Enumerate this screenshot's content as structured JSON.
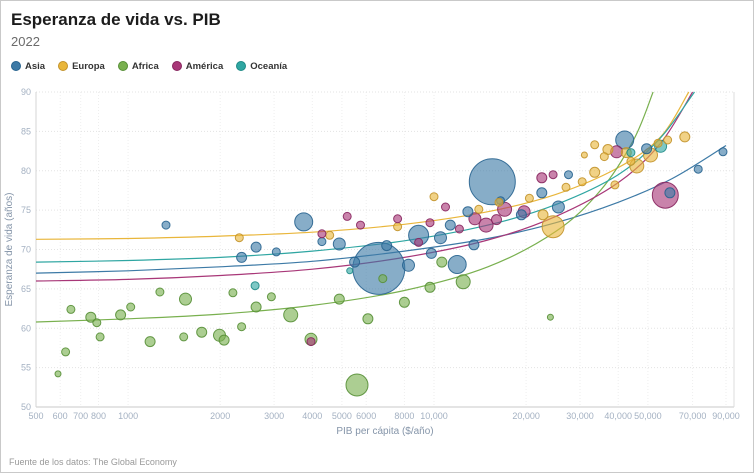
{
  "footer": {
    "source": "Fuente de los datos: The Global Economy"
  },
  "chart_data": {
    "type": "scatter",
    "title": "Esperanza de vida vs. PIB",
    "subtitle": "2022",
    "xlabel": "PIB per cápita ($/año)",
    "ylabel": "Esperanza de vida (años)",
    "x_scale": "log",
    "xlim": [
      500,
      90000
    ],
    "ylim": [
      50,
      90
    ],
    "grid": true,
    "legend_position": "top-left",
    "x_ticks": [
      500,
      600,
      700,
      800,
      1000,
      2000,
      3000,
      4000,
      5000,
      6000,
      8000,
      10000,
      20000,
      30000,
      40000,
      50000,
      70000,
      90000
    ],
    "x_tick_labels": [
      "500",
      "600",
      "700",
      "800",
      "1000",
      "2000",
      "3000",
      "4000",
      "5000",
      "6000",
      "8000",
      "10,000",
      "20,000",
      "30,000",
      "40,000",
      "50,000",
      "70,000",
      "90,000"
    ],
    "y_ticks": [
      50,
      55,
      60,
      65,
      70,
      75,
      80,
      85,
      90
    ],
    "point_format": "[pib_per_capita, esperanza_de_vida, bubble_radius_px]",
    "series": [
      {
        "name": "Asia",
        "color": "#3d7aa6",
        "stroke": "#27638f",
        "points": [
          [
            1330,
            73.1,
            4
          ],
          [
            3750,
            73.5,
            9
          ],
          [
            6600,
            67.6,
            26
          ],
          [
            15500,
            78.6,
            23
          ],
          [
            8900,
            71.8,
            10
          ],
          [
            11900,
            68.1,
            9
          ],
          [
            4900,
            70.7,
            6
          ],
          [
            5500,
            68.4,
            5
          ],
          [
            8250,
            68.0,
            6
          ],
          [
            42000,
            83.9,
            9
          ],
          [
            49500,
            82.8,
            5
          ],
          [
            73000,
            80.2,
            4
          ],
          [
            88000,
            82.4,
            4
          ],
          [
            59000,
            77.2,
            5
          ],
          [
            25500,
            75.4,
            6
          ],
          [
            22500,
            77.2,
            5
          ],
          [
            27500,
            79.5,
            4
          ],
          [
            2620,
            70.3,
            5
          ],
          [
            3050,
            69.7,
            4
          ],
          [
            2350,
            69.0,
            5
          ],
          [
            12900,
            74.8,
            5
          ],
          [
            11300,
            73.1,
            5
          ],
          [
            19300,
            74.4,
            5
          ],
          [
            7000,
            70.5,
            5
          ],
          [
            9800,
            69.5,
            5
          ],
          [
            10500,
            71.5,
            6
          ],
          [
            13500,
            70.6,
            5
          ],
          [
            4300,
            71.0,
            4
          ],
          [
            16500,
            76.2,
            4
          ]
        ],
        "trend": [
          [
            500,
            67.0
          ],
          [
            1000,
            67.3
          ],
          [
            2000,
            67.8
          ],
          [
            4000,
            68.5
          ],
          [
            8000,
            69.8
          ],
          [
            15000,
            71.4
          ],
          [
            25000,
            73.4
          ],
          [
            40000,
            76.0
          ],
          [
            60000,
            79.0
          ],
          [
            90000,
            83.2
          ]
        ]
      },
      {
        "name": "Europa",
        "color": "#e9b63b",
        "stroke": "#c2922a",
        "points": [
          [
            2310,
            71.5,
            4
          ],
          [
            24500,
            72.9,
            11
          ],
          [
            37000,
            82.7,
            5
          ],
          [
            51000,
            82.0,
            7
          ],
          [
            46000,
            80.6,
            7
          ],
          [
            36000,
            81.8,
            4
          ],
          [
            33500,
            83.3,
            4
          ],
          [
            54000,
            83.5,
            4
          ],
          [
            33500,
            79.8,
            5
          ],
          [
            30500,
            78.6,
            4
          ],
          [
            27000,
            77.9,
            4
          ],
          [
            22700,
            74.4,
            5
          ],
          [
            16300,
            76.0,
            4
          ],
          [
            14000,
            75.1,
            4
          ],
          [
            10000,
            76.7,
            4
          ],
          [
            7600,
            72.9,
            4
          ],
          [
            4560,
            71.8,
            4
          ],
          [
            66000,
            84.3,
            5
          ],
          [
            58000,
            83.9,
            4
          ],
          [
            42500,
            82.3,
            5
          ],
          [
            39000,
            78.2,
            4
          ],
          [
            20500,
            76.5,
            4
          ],
          [
            44000,
            81.2,
            4
          ],
          [
            31000,
            82.0,
            3
          ]
        ],
        "trend": [
          [
            500,
            71.3
          ],
          [
            1000,
            71.4
          ],
          [
            2000,
            71.7
          ],
          [
            4000,
            72.2
          ],
          [
            8000,
            73.2
          ],
          [
            15000,
            74.8
          ],
          [
            25000,
            77.0
          ],
          [
            40000,
            80.4
          ],
          [
            55000,
            84.3
          ],
          [
            68000,
            90
          ]
        ]
      },
      {
        "name": "Africa",
        "color": "#79b04f",
        "stroke": "#578f36",
        "points": [
          [
            650,
            62.4,
            4
          ],
          [
            755,
            61.4,
            5
          ],
          [
            790,
            60.7,
            4
          ],
          [
            945,
            61.7,
            5
          ],
          [
            1020,
            62.7,
            4
          ],
          [
            1180,
            58.3,
            5
          ],
          [
            1540,
            63.7,
            6
          ],
          [
            1520,
            58.9,
            4
          ],
          [
            1740,
            59.5,
            5
          ],
          [
            1990,
            59.1,
            6
          ],
          [
            2060,
            58.5,
            5
          ],
          [
            2350,
            60.2,
            4
          ],
          [
            2620,
            62.7,
            5
          ],
          [
            2940,
            64.0,
            4
          ],
          [
            3400,
            61.7,
            7
          ],
          [
            3960,
            58.6,
            6
          ],
          [
            5600,
            52.8,
            11
          ],
          [
            4900,
            63.7,
            5
          ],
          [
            6080,
            61.2,
            5
          ],
          [
            8000,
            63.3,
            5
          ],
          [
            9700,
            65.2,
            5
          ],
          [
            12450,
            65.9,
            7
          ],
          [
            10600,
            68.4,
            5
          ],
          [
            1270,
            64.6,
            4
          ],
          [
            625,
            57.0,
            4
          ],
          [
            24000,
            61.4,
            3
          ],
          [
            810,
            58.9,
            4
          ],
          [
            590,
            54.2,
            3
          ],
          [
            2200,
            64.5,
            4
          ],
          [
            6800,
            66.3,
            4
          ]
        ],
        "trend": [
          [
            500,
            60.8
          ],
          [
            1000,
            61.2
          ],
          [
            2000,
            61.8
          ],
          [
            4000,
            62.9
          ],
          [
            8000,
            64.8
          ],
          [
            15000,
            67.8
          ],
          [
            25000,
            72.3
          ],
          [
            35000,
            77.5
          ],
          [
            45000,
            84.0
          ],
          [
            52000,
            90
          ]
        ]
      },
      {
        "name": "América",
        "color": "#a83778",
        "stroke": "#87255e",
        "points": [
          [
            3960,
            58.3,
            4
          ],
          [
            14800,
            73.1,
            7
          ],
          [
            13600,
            73.9,
            6
          ],
          [
            17000,
            75.1,
            7
          ],
          [
            19700,
            74.8,
            6
          ],
          [
            22500,
            79.1,
            5
          ],
          [
            24500,
            79.5,
            4
          ],
          [
            57000,
            76.9,
            13
          ],
          [
            39500,
            82.4,
            6
          ],
          [
            8900,
            70.9,
            4
          ],
          [
            10900,
            75.4,
            4
          ],
          [
            7600,
            73.9,
            4
          ],
          [
            5750,
            73.1,
            4
          ],
          [
            9700,
            73.4,
            4
          ],
          [
            12100,
            72.6,
            4
          ],
          [
            5200,
            74.2,
            4
          ],
          [
            16000,
            73.8,
            5
          ],
          [
            4300,
            72.0,
            4
          ]
        ],
        "trend": [
          [
            500,
            66.0
          ],
          [
            1000,
            66.2
          ],
          [
            2000,
            66.7
          ],
          [
            4000,
            67.5
          ],
          [
            8000,
            69.0
          ],
          [
            15000,
            71.2
          ],
          [
            25000,
            74.2
          ],
          [
            40000,
            78.5
          ],
          [
            55000,
            83.5
          ],
          [
            70000,
            90
          ]
        ]
      },
      {
        "name": "Oceanía",
        "color": "#2fa6a2",
        "stroke": "#1d8a86",
        "points": [
          [
            55000,
            83.1,
            6
          ],
          [
            44000,
            82.3,
            4
          ],
          [
            2600,
            65.4,
            4
          ],
          [
            5300,
            67.3,
            3
          ]
        ],
        "trend": [
          [
            500,
            68.4
          ],
          [
            1000,
            68.6
          ],
          [
            2000,
            69.0
          ],
          [
            4000,
            69.8
          ],
          [
            8000,
            71.1
          ],
          [
            15000,
            73.1
          ],
          [
            25000,
            75.7
          ],
          [
            40000,
            79.5
          ],
          [
            55000,
            84.2
          ],
          [
            71000,
            90
          ]
        ]
      }
    ]
  }
}
